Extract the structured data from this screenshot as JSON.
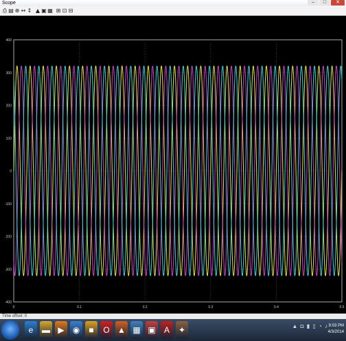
{
  "window": {
    "title": "Scope"
  },
  "toolbar": {
    "buttons": [
      {
        "icon": "print-icon",
        "glyph": "⎙"
      },
      {
        "icon": "parameters-icon",
        "glyph": "▤"
      },
      {
        "icon": "zoom-in-icon",
        "glyph": "⊕"
      },
      {
        "icon": "zoom-x-icon",
        "glyph": "↔"
      },
      {
        "icon": "zoom-y-icon",
        "glyph": "↕"
      },
      {
        "icon": "autoscale-icon",
        "glyph": "▲"
      },
      {
        "icon": "save-axes-icon",
        "glyph": "▣"
      },
      {
        "icon": "restore-axes-icon",
        "glyph": "▦"
      },
      {
        "icon": "floating-scope-icon",
        "glyph": "⊞"
      },
      {
        "icon": "lock-icon",
        "glyph": "⊡"
      },
      {
        "icon": "signal-selection-icon",
        "glyph": "⊟"
      }
    ]
  },
  "statusbar": {
    "text": "Time offset: 0"
  },
  "chart_data": {
    "type": "line",
    "background": "#000000",
    "grid": true,
    "xlim": [
      0,
      0.5
    ],
    "ylim": [
      -400,
      400
    ],
    "x_ticks": [
      "0",
      "0.1",
      "0.2",
      "0.3",
      "0.4",
      "0.5"
    ],
    "y_ticks": [
      "400",
      "300",
      "200",
      "100",
      "0",
      "-100",
      "-200",
      "-300",
      "-400"
    ],
    "series": [
      {
        "color": "#e8e83a",
        "amplitude": 320,
        "frequency_hz": 50,
        "phase_deg": 0
      },
      {
        "color": "#d040d0",
        "amplitude": 320,
        "frequency_hz": 50,
        "phase_deg": -120
      },
      {
        "color": "#38d8e0",
        "amplitude": 320,
        "frequency_hz": 50,
        "phase_deg": 120
      }
    ]
  },
  "taskbar": {
    "apps": [
      {
        "name": "internet-explorer-icon",
        "glyph": "e",
        "color": "#2a7fd4"
      },
      {
        "name": "file-explorer-icon",
        "glyph": "▬",
        "color": "#d8a830"
      },
      {
        "name": "media-player-icon",
        "glyph": "▶",
        "color": "#e07a1a"
      },
      {
        "name": "app-icon",
        "glyph": "◉",
        "color": "#3a7fd0"
      },
      {
        "name": "app-icon",
        "glyph": "■",
        "color": "#e0a020"
      },
      {
        "name": "opera-icon",
        "glyph": "O",
        "color": "#d02020"
      },
      {
        "name": "matlab-icon",
        "glyph": "▲",
        "color": "#d06020"
      },
      {
        "name": "app-icon",
        "glyph": "▦",
        "color": "#4080c0"
      },
      {
        "name": "app-icon",
        "glyph": "▣",
        "color": "#c04040"
      },
      {
        "name": "acrobat-icon",
        "glyph": "A",
        "color": "#c02020"
      },
      {
        "name": "app-icon",
        "glyph": "✦",
        "color": "#8a6040"
      }
    ],
    "tray": "▲ ◘ ▮ ▯ ◔ ♪",
    "clock_time": "9:03 PM",
    "clock_date": "4/3/2014"
  }
}
